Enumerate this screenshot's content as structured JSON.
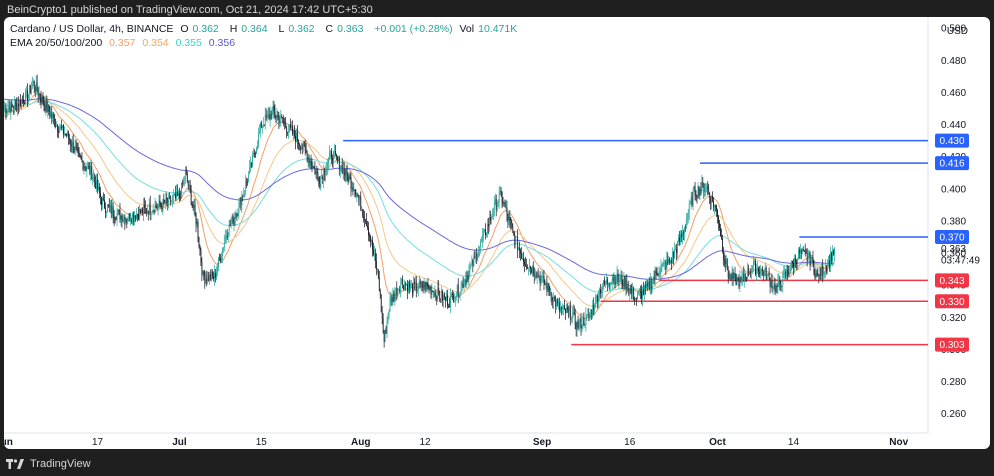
{
  "header": {
    "published": "BeinCrypto1 published on TradingView.com, Oct 21, 2024 17:42 UTC+5:30"
  },
  "legend": {
    "symbol": "Cardano / US Dollar, 4h, BINANCE",
    "o_label": "O",
    "o_value": "0.362",
    "h_label": "H",
    "h_value": "0.364",
    "l_label": "L",
    "l_value": "0.362",
    "c_label": "C",
    "c_value": "0.363",
    "change": "+0.001 (+0.28%)",
    "vol_label": "Vol",
    "vol_value": "10.471K",
    "ema_label": "EMA 20/50/100/200",
    "ema_values": [
      "0.357",
      "0.354",
      "0.355",
      "0.356"
    ]
  },
  "currency": "USD",
  "footer": {
    "brand": "TradingView"
  },
  "colors": {
    "up": "#26a69a",
    "down": "#131722",
    "ema20": "#f0a06a",
    "ema50": "#f6c88a",
    "ema100": "#76dde0",
    "ema200": "#6b68e0",
    "resistance": "#2962ff",
    "support": "#f23645"
  },
  "chart_data": {
    "type": "candlestick",
    "x_ticks": [
      "Jun",
      "17",
      "Jul",
      "15",
      "Aug",
      "12",
      "Sep",
      "16",
      "Oct",
      "14",
      "Nov"
    ],
    "y_ticks": [
      0.26,
      0.28,
      0.3,
      0.32,
      0.34,
      0.36,
      0.38,
      0.4,
      0.42,
      0.44,
      0.46,
      0.48,
      0.5
    ],
    "y_tick_labels": [
      "0.260",
      "0.280",
      "0.300",
      "0.320",
      "0.340",
      "0.360",
      "0.380",
      "0.400",
      "0.420",
      "0.440",
      "0.460",
      "0.480",
      "0.500"
    ],
    "ylim": [
      0.248,
      0.507
    ],
    "x_range": [
      "2024-06-01",
      "2024-11-06"
    ],
    "price_path": [
      [
        "2024-06-01",
        0.45
      ],
      [
        "2024-06-03",
        0.452
      ],
      [
        "2024-06-05",
        0.458
      ],
      [
        "2024-06-06",
        0.466
      ],
      [
        "2024-06-08",
        0.452
      ],
      [
        "2024-06-10",
        0.44
      ],
      [
        "2024-06-12",
        0.432
      ],
      [
        "2024-06-14",
        0.418
      ],
      [
        "2024-06-16",
        0.41
      ],
      [
        "2024-06-18",
        0.39
      ],
      [
        "2024-06-20",
        0.385
      ],
      [
        "2024-06-22",
        0.382
      ],
      [
        "2024-06-24",
        0.385
      ],
      [
        "2024-06-26",
        0.388
      ],
      [
        "2024-06-28",
        0.39
      ],
      [
        "2024-07-01",
        0.395
      ],
      [
        "2024-07-02",
        0.41
      ],
      [
        "2024-07-04",
        0.378
      ],
      [
        "2024-07-05",
        0.345
      ],
      [
        "2024-07-07",
        0.345
      ],
      [
        "2024-07-09",
        0.372
      ],
      [
        "2024-07-11",
        0.388
      ],
      [
        "2024-07-13",
        0.41
      ],
      [
        "2024-07-15",
        0.44
      ],
      [
        "2024-07-17",
        0.448
      ],
      [
        "2024-07-19",
        0.44
      ],
      [
        "2024-07-21",
        0.432
      ],
      [
        "2024-07-23",
        0.42
      ],
      [
        "2024-07-25",
        0.405
      ],
      [
        "2024-07-27",
        0.422
      ],
      [
        "2024-07-29",
        0.412
      ],
      [
        "2024-07-31",
        0.4
      ],
      [
        "2024-08-02",
        0.38
      ],
      [
        "2024-08-04",
        0.345
      ],
      [
        "2024-08-05",
        0.305
      ],
      [
        "2024-08-06",
        0.33
      ],
      [
        "2024-08-08",
        0.342
      ],
      [
        "2024-08-10",
        0.338
      ],
      [
        "2024-08-12",
        0.34
      ],
      [
        "2024-08-14",
        0.335
      ],
      [
        "2024-08-16",
        0.33
      ],
      [
        "2024-08-18",
        0.338
      ],
      [
        "2024-08-20",
        0.352
      ],
      [
        "2024-08-22",
        0.37
      ],
      [
        "2024-08-24",
        0.39
      ],
      [
        "2024-08-25",
        0.396
      ],
      [
        "2024-08-27",
        0.372
      ],
      [
        "2024-08-29",
        0.355
      ],
      [
        "2024-08-31",
        0.348
      ],
      [
        "2024-09-02",
        0.338
      ],
      [
        "2024-09-04",
        0.325
      ],
      [
        "2024-09-06",
        0.322
      ],
      [
        "2024-09-07",
        0.315
      ],
      [
        "2024-09-09",
        0.32
      ],
      [
        "2024-09-11",
        0.338
      ],
      [
        "2024-09-13",
        0.345
      ],
      [
        "2024-09-15",
        0.342
      ],
      [
        "2024-09-17",
        0.332
      ],
      [
        "2024-09-19",
        0.338
      ],
      [
        "2024-09-21",
        0.35
      ],
      [
        "2024-09-23",
        0.355
      ],
      [
        "2024-09-25",
        0.372
      ],
      [
        "2024-09-27",
        0.398
      ],
      [
        "2024-09-29",
        0.402
      ],
      [
        "2024-10-01",
        0.385
      ],
      [
        "2024-10-02",
        0.36
      ],
      [
        "2024-10-03",
        0.345
      ],
      [
        "2024-10-05",
        0.342
      ],
      [
        "2024-10-07",
        0.352
      ],
      [
        "2024-10-09",
        0.348
      ],
      [
        "2024-10-11",
        0.338
      ],
      [
        "2024-10-13",
        0.348
      ],
      [
        "2024-10-15",
        0.36
      ],
      [
        "2024-10-17",
        0.356
      ],
      [
        "2024-10-18",
        0.345
      ],
      [
        "2024-10-20",
        0.354
      ],
      [
        "2024-10-21",
        0.363
      ]
    ],
    "levels": [
      {
        "value": 0.43,
        "label": "0.430",
        "kind": "resistance",
        "from": "2024-07-29"
      },
      {
        "value": 0.416,
        "label": "0.416",
        "kind": "resistance",
        "from": "2024-09-28"
      },
      {
        "value": 0.37,
        "label": "0.370",
        "kind": "resistance",
        "from": "2024-10-15"
      },
      {
        "value": 0.343,
        "label": "0.343",
        "kind": "support",
        "from": "2024-09-21"
      },
      {
        "value": 0.33,
        "label": "0.330",
        "kind": "support",
        "from": "2024-09-11"
      },
      {
        "value": 0.303,
        "label": "0.303",
        "kind": "support",
        "from": "2024-09-06"
      }
    ],
    "last_price": {
      "value": 0.363,
      "label": "0.363",
      "countdown": "03:47:49"
    },
    "ema_periods": [
      20,
      50,
      100,
      200
    ]
  }
}
